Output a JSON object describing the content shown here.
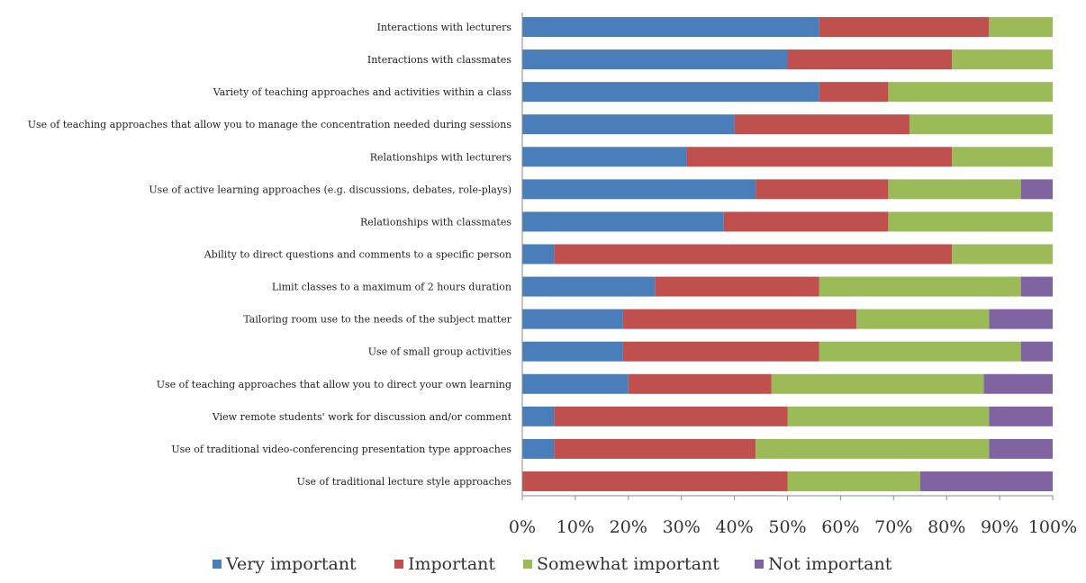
{
  "chart_data": {
    "type": "bar",
    "orientation": "horizontal",
    "stacked": "percent",
    "categories": [
      "Interactions with lecturers",
      "Interactions with classmates",
      "Variety of teaching approaches and activities within a class",
      "Use of teaching approaches that allow you to manage the concentration needed during sessions",
      "Relationships with lecturers",
      "Use of active learning approaches (e.g. discussions, debates, role-plays)",
      "Relationships with classmates",
      "Ability to direct questions and comments to a specific person",
      "Limit classes to a maximum of 2 hours duration",
      "Tailoring room use to the needs of the subject matter",
      "Use of small group activities",
      "Use of teaching approaches that allow you to direct your own learning",
      "View remote students' work for discussion and/or comment",
      "Use of traditional video-conferencing presentation type approaches",
      "Use of traditional lecture style approaches"
    ],
    "series": [
      {
        "name": "Very important",
        "color": "#4a7ebb",
        "values": [
          56,
          50,
          56,
          40,
          31,
          44,
          38,
          6,
          25,
          19,
          19,
          20,
          6,
          6,
          0
        ]
      },
      {
        "name": "Important",
        "color": "#c0504d",
        "values": [
          32,
          31,
          13,
          33,
          50,
          25,
          31,
          75,
          31,
          44,
          37,
          27,
          44,
          38,
          50
        ]
      },
      {
        "name": "Somewhat important",
        "color": "#9bbb59",
        "values": [
          12,
          19,
          31,
          27,
          19,
          25,
          31,
          19,
          38,
          25,
          38,
          40,
          38,
          44,
          25
        ]
      },
      {
        "name": "Not important",
        "color": "#8064a2",
        "values": [
          0,
          0,
          0,
          0,
          0,
          6,
          0,
          0,
          6,
          12,
          6,
          13,
          12,
          12,
          25
        ]
      }
    ],
    "x_ticks": [
      "0%",
      "10%",
      "20%",
      "30%",
      "40%",
      "50%",
      "60%",
      "70%",
      "80%",
      "90%",
      "100%"
    ],
    "xlim": [
      0,
      100
    ],
    "legend_position": "bottom",
    "grid": false
  }
}
